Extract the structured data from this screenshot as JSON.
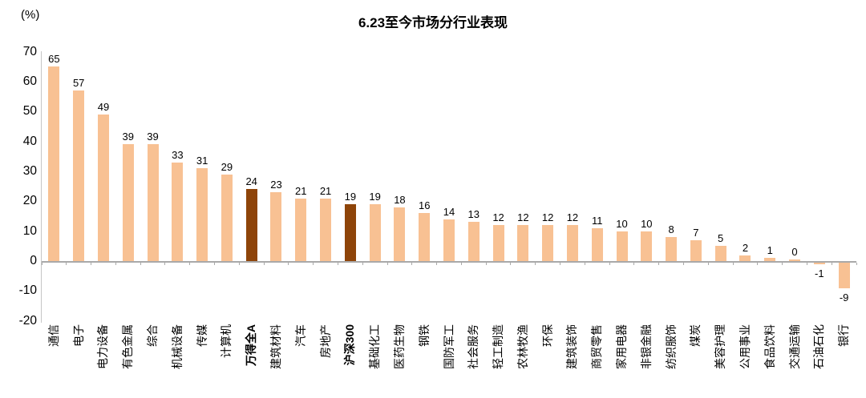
{
  "chart_data": {
    "type": "bar",
    "title": "6.23至今市场分行业表现",
    "unit_label": "(%)",
    "xlabel": "",
    "ylabel": "(%)",
    "categories": [
      "通信",
      "电子",
      "电力设备",
      "有色金属",
      "综合",
      "机械设备",
      "传媒",
      "计算机",
      "万得全A",
      "建筑材料",
      "汽车",
      "房地产",
      "沪深300",
      "基础化工",
      "医药生物",
      "钢铁",
      "国防军工",
      "社会服务",
      "轻工制造",
      "农林牧渔",
      "环保",
      "建筑装饰",
      "商贸零售",
      "家用电器",
      "非银金融",
      "纺织服饰",
      "煤炭",
      "美容护理",
      "公用事业",
      "食品饮料",
      "交通运输",
      "石油石化",
      "银行"
    ],
    "values": [
      65,
      57,
      49,
      39,
      39,
      33,
      31,
      29,
      24,
      23,
      21,
      21,
      19,
      19,
      18,
      16,
      14,
      13,
      12,
      12,
      12,
      12,
      11,
      10,
      10,
      8,
      7,
      5,
      2,
      1,
      0,
      -1,
      -9
    ],
    "highlighted_categories": [
      "万得全A",
      "沪深300"
    ],
    "highlight_indices": [
      8,
      12
    ],
    "bar_color": "#F8C193",
    "highlight_color": "#8E4409",
    "axis_color": "#A9A9A9",
    "yaxis_line_color": "#C6C6C6",
    "text_color": "#000000",
    "ylim": [
      -20,
      70
    ],
    "yticks": [
      70,
      60,
      50,
      40,
      30,
      20,
      10,
      0,
      -10,
      -20
    ],
    "grid": "off",
    "legend": "none",
    "data_labels": "on"
  }
}
